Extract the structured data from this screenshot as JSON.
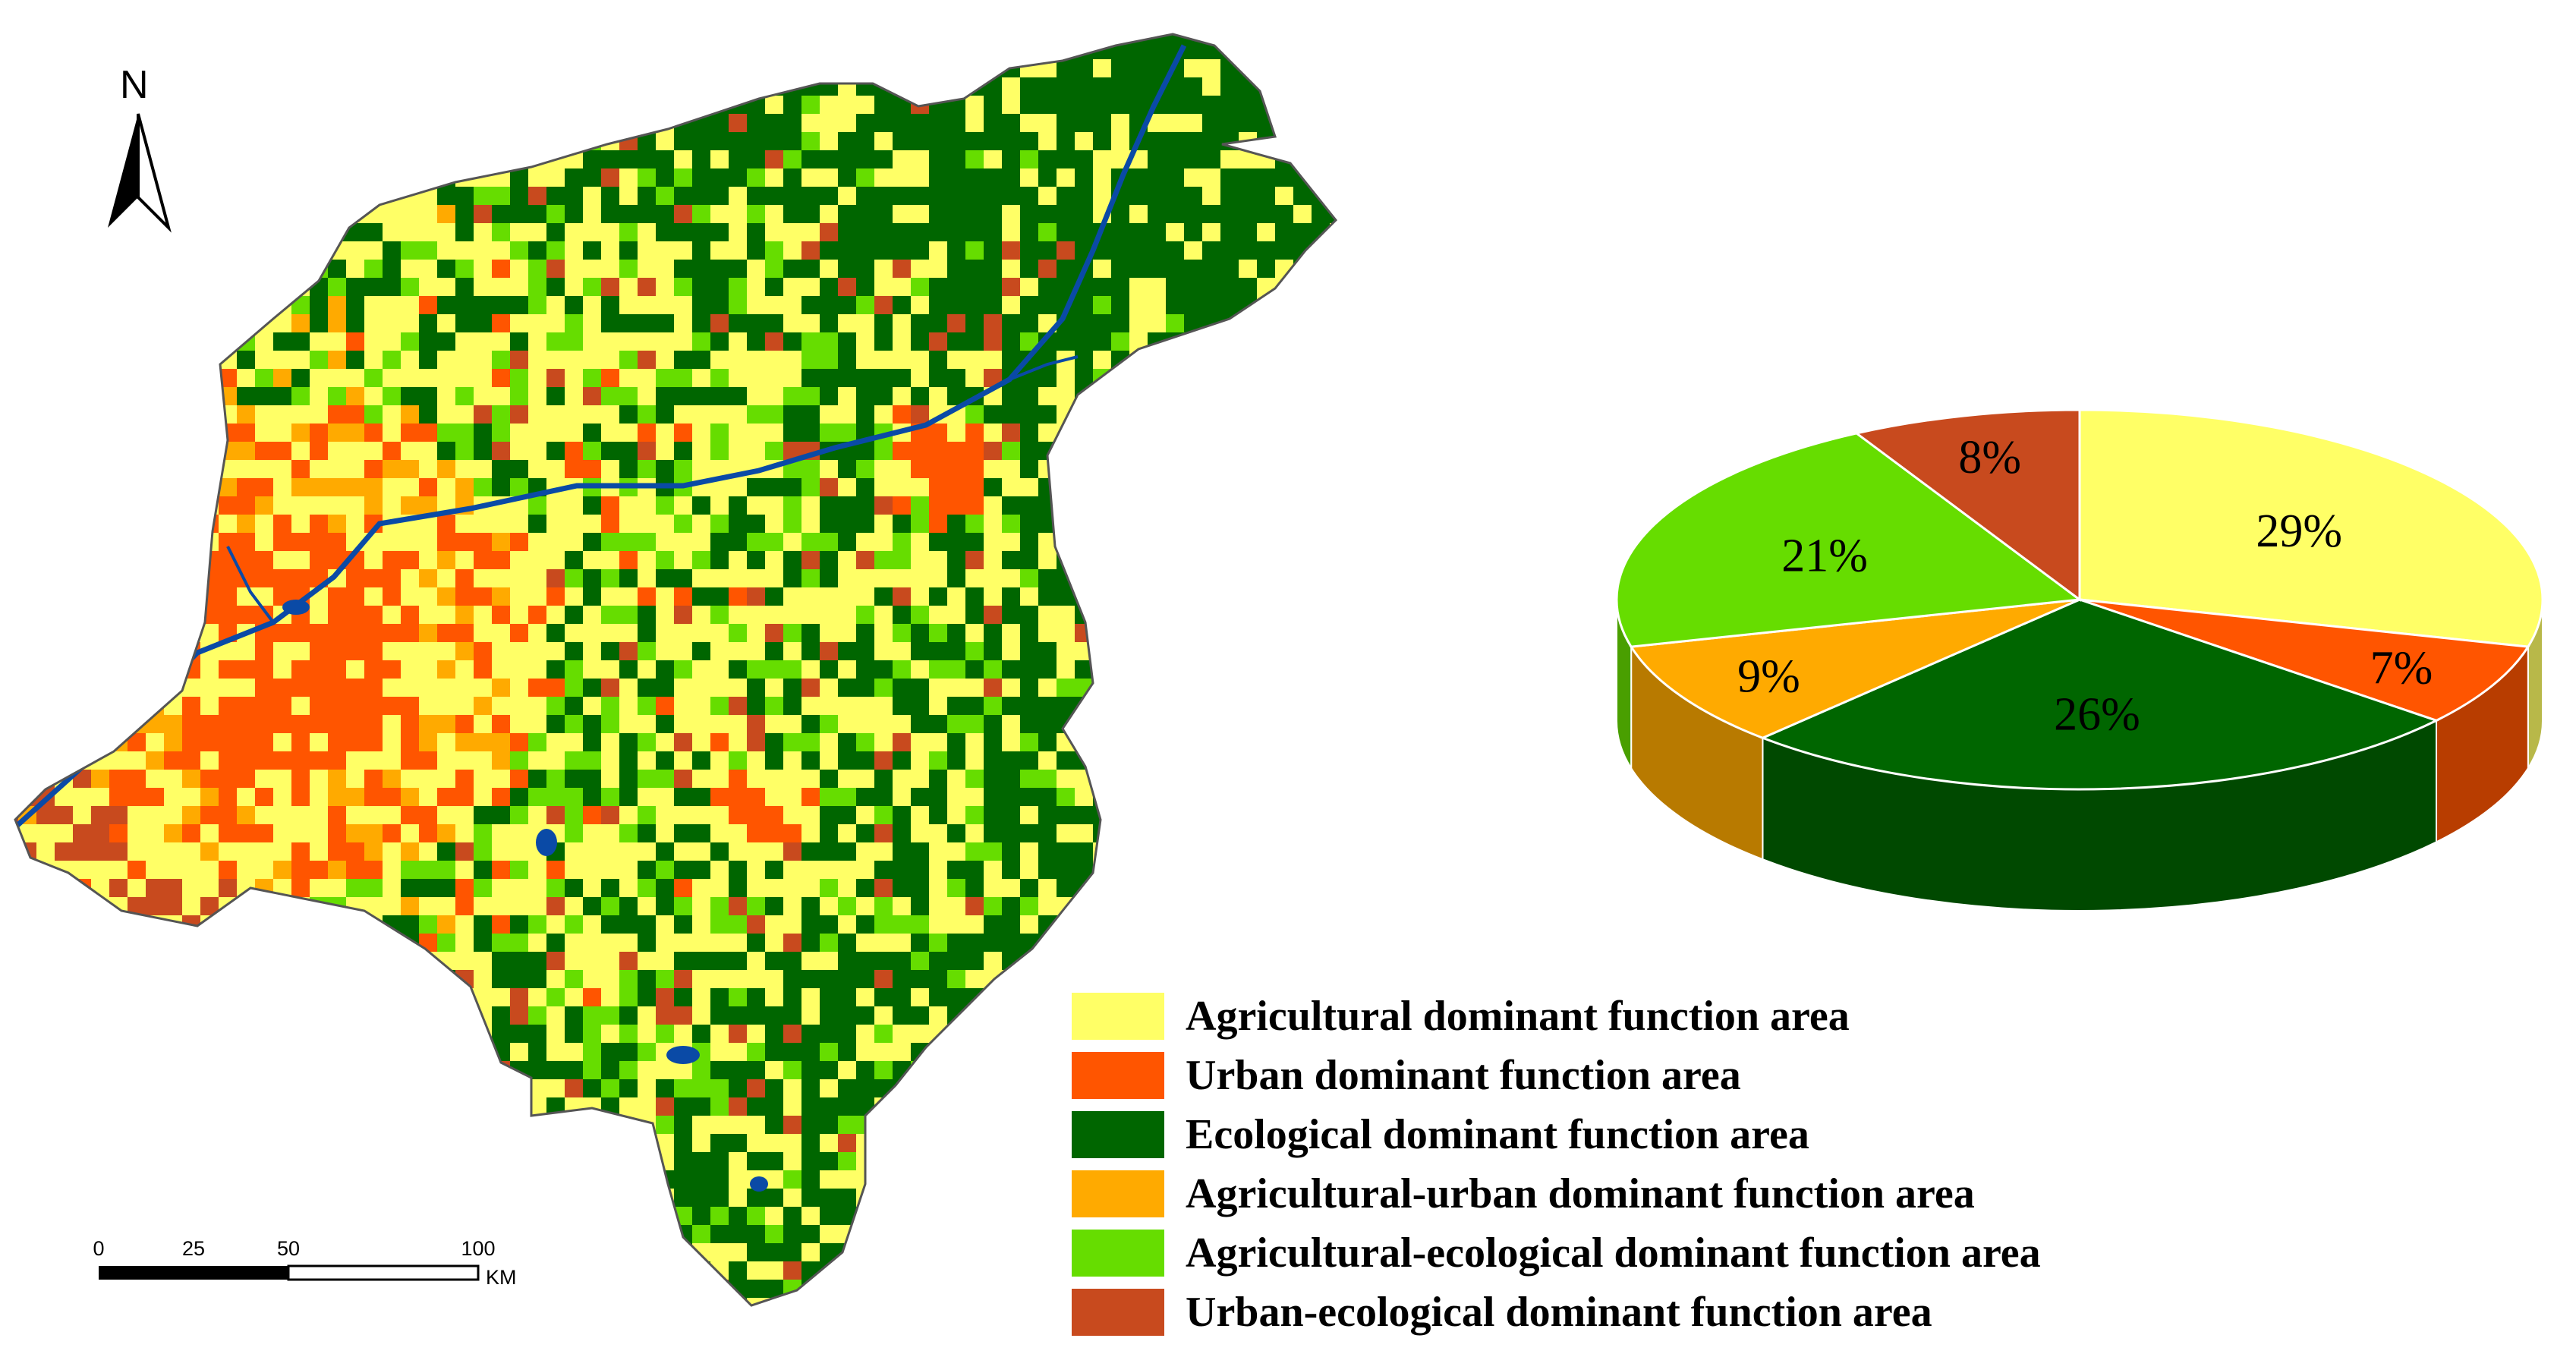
{
  "map": {
    "north_label": "N",
    "scale": {
      "ticks": [
        "0",
        "25",
        "50",
        "100"
      ],
      "tick_values": [
        0,
        25,
        50,
        100
      ],
      "unit": "KM"
    },
    "colors": {
      "agricultural": "#ffff66",
      "urban": "#ff5500",
      "ecological": "#006600",
      "agri_urban": "#ffaa00",
      "agri_eco": "#66dd00",
      "urban_eco": "#c84a1e",
      "water": "#0a4aa6",
      "boundary": "#555555"
    }
  },
  "chart_data": {
    "type": "pie",
    "title": "",
    "slices": [
      {
        "label": "Agricultural dominant function area",
        "value": 29,
        "display": "29%",
        "color": "#ffff66"
      },
      {
        "label": "Urban dominant function area",
        "value": 7,
        "display": "7%",
        "color": "#ff5500"
      },
      {
        "label": "Ecological dominant function area",
        "value": 26,
        "display": "26%",
        "color": "#006600"
      },
      {
        "label": "Agricultural-urban dominant function area",
        "value": 9,
        "display": "9%",
        "color": "#ffaa00"
      },
      {
        "label": "Agricultural-ecological dominant function area",
        "value": 21,
        "display": "21%",
        "color": "#66dd00"
      },
      {
        "label": "Urban-ecological dominant function area",
        "value": 8,
        "display": "8%",
        "color": "#c84a1e"
      }
    ]
  },
  "legend": {
    "items": [
      {
        "label": "Agricultural dominant function area",
        "color": "#ffff66"
      },
      {
        "label": "Urban dominant function area",
        "color": "#ff5500"
      },
      {
        "label": "Ecological dominant function area",
        "color": "#006600"
      },
      {
        "label": "Agricultural-urban dominant function area",
        "color": "#ffaa00"
      },
      {
        "label": "Agricultural-ecological dominant function area",
        "color": "#66dd00"
      },
      {
        "label": "Urban-ecological dominant function area",
        "color": "#c84a1e"
      }
    ]
  }
}
